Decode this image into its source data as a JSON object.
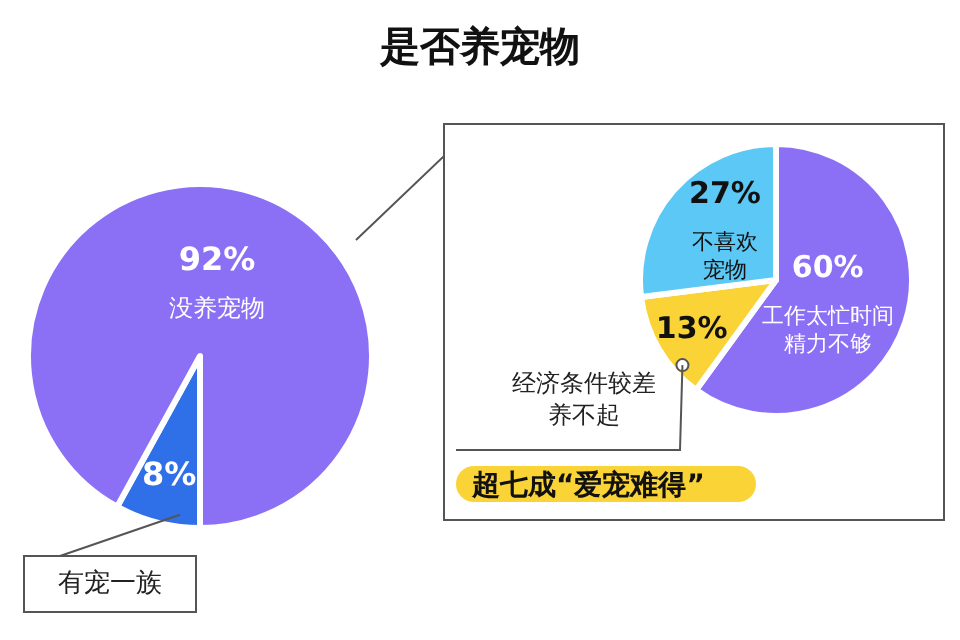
{
  "chart_data": [
    {
      "type": "pie",
      "title": "是否养宠物",
      "categories": [
        "有宠一族",
        "没养宠物"
      ],
      "values": [
        8,
        92
      ],
      "value_labels": [
        "8%",
        "92%"
      ],
      "colors": [
        "#2f6fe8",
        "#8b70f6"
      ]
    },
    {
      "type": "pie",
      "categories": [
        "工作太忙时间精力不够",
        "经济条件较差养不起",
        "不喜欢宠物"
      ],
      "values": [
        60,
        13,
        27
      ],
      "value_labels": [
        "60%",
        "13%",
        "27%"
      ],
      "colors": [
        "#8b70f6",
        "#fad337",
        "#5cc8f5"
      ],
      "annotations": [
        "超七成“爱宠难得”"
      ]
    }
  ]
}
